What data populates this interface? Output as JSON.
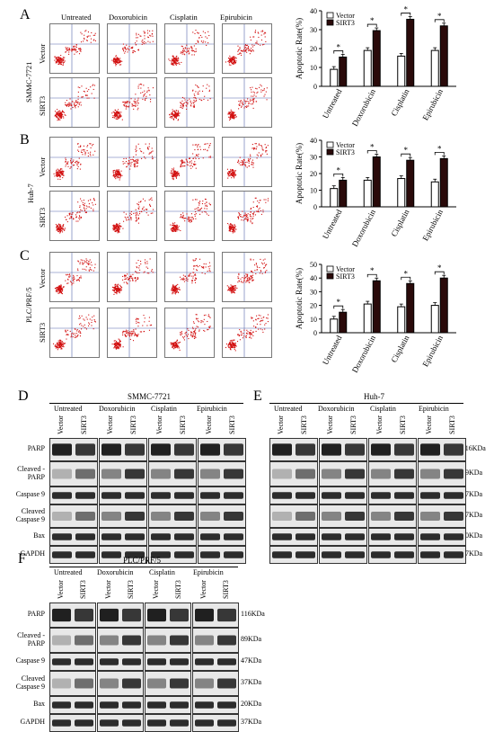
{
  "panels": {
    "A": {
      "letter": "A",
      "cell": "SMMC-7721"
    },
    "B": {
      "letter": "B",
      "cell": "Huh-7"
    },
    "C": {
      "letter": "C",
      "cell": "PLC/PRF/5"
    },
    "D": {
      "letter": "D",
      "cell": "SMMC-7721"
    },
    "E": {
      "letter": "E",
      "cell": "Huh-7"
    },
    "F": {
      "letter": "F",
      "cell": "PLC/PRF/5"
    }
  },
  "treatments": [
    "Untreated",
    "Doxorubicin",
    "Cisplatin",
    "Epirubicin"
  ],
  "groups": [
    "Vector",
    "SIRT3"
  ],
  "blot_rows": [
    "PARP",
    "Cleaved -PARP",
    "Caspase 9",
    "Cleaved Caspase 9",
    "Bax",
    "GAPDH"
  ],
  "kda": [
    "116KDa",
    "89KDa",
    "47KDa",
    "37KDa",
    "20KDa",
    "37KDa"
  ],
  "chart_data": [
    {
      "type": "bar",
      "panel": "A",
      "categories": [
        "Untreated",
        "Doxorubicin",
        "Cisplatin",
        "Epirubicin"
      ],
      "series": [
        {
          "name": "Vector",
          "values": [
            9,
            19,
            16,
            19
          ]
        },
        {
          "name": "SIRT3",
          "values": [
            15.5,
            29.5,
            35.5,
            32
          ]
        }
      ],
      "ylabel": "Apoptotic Rate(%)",
      "ylim": [
        0,
        40
      ],
      "yticks": [
        0,
        10,
        20,
        30,
        40
      ],
      "significance": "*",
      "legend": "top-left"
    },
    {
      "type": "bar",
      "panel": "B",
      "categories": [
        "Untreated",
        "Doxorubicin",
        "Cisplatin",
        "Epirubicin"
      ],
      "series": [
        {
          "name": "Vector",
          "values": [
            11,
            16,
            17,
            15
          ]
        },
        {
          "name": "SIRT3",
          "values": [
            16,
            30,
            28,
            29
          ]
        }
      ],
      "ylabel": "Apoptotic Rate(%)",
      "ylim": [
        0,
        40
      ],
      "yticks": [
        0,
        10,
        20,
        30,
        40
      ],
      "significance": "*",
      "legend": "top-left"
    },
    {
      "type": "bar",
      "panel": "C",
      "categories": [
        "Untreated",
        "Doxorubicin",
        "Cisplatin",
        "Epirubicin"
      ],
      "series": [
        {
          "name": "Vector",
          "values": [
            10,
            21,
            19,
            20
          ]
        },
        {
          "name": "SIRT3",
          "values": [
            15,
            38,
            36,
            40
          ]
        }
      ],
      "ylabel": "Apoptotic Rate(%)",
      "ylim": [
        0,
        50
      ],
      "yticks": [
        0,
        10,
        20,
        30,
        40,
        50
      ],
      "significance": "*",
      "legend": "top-left"
    }
  ]
}
